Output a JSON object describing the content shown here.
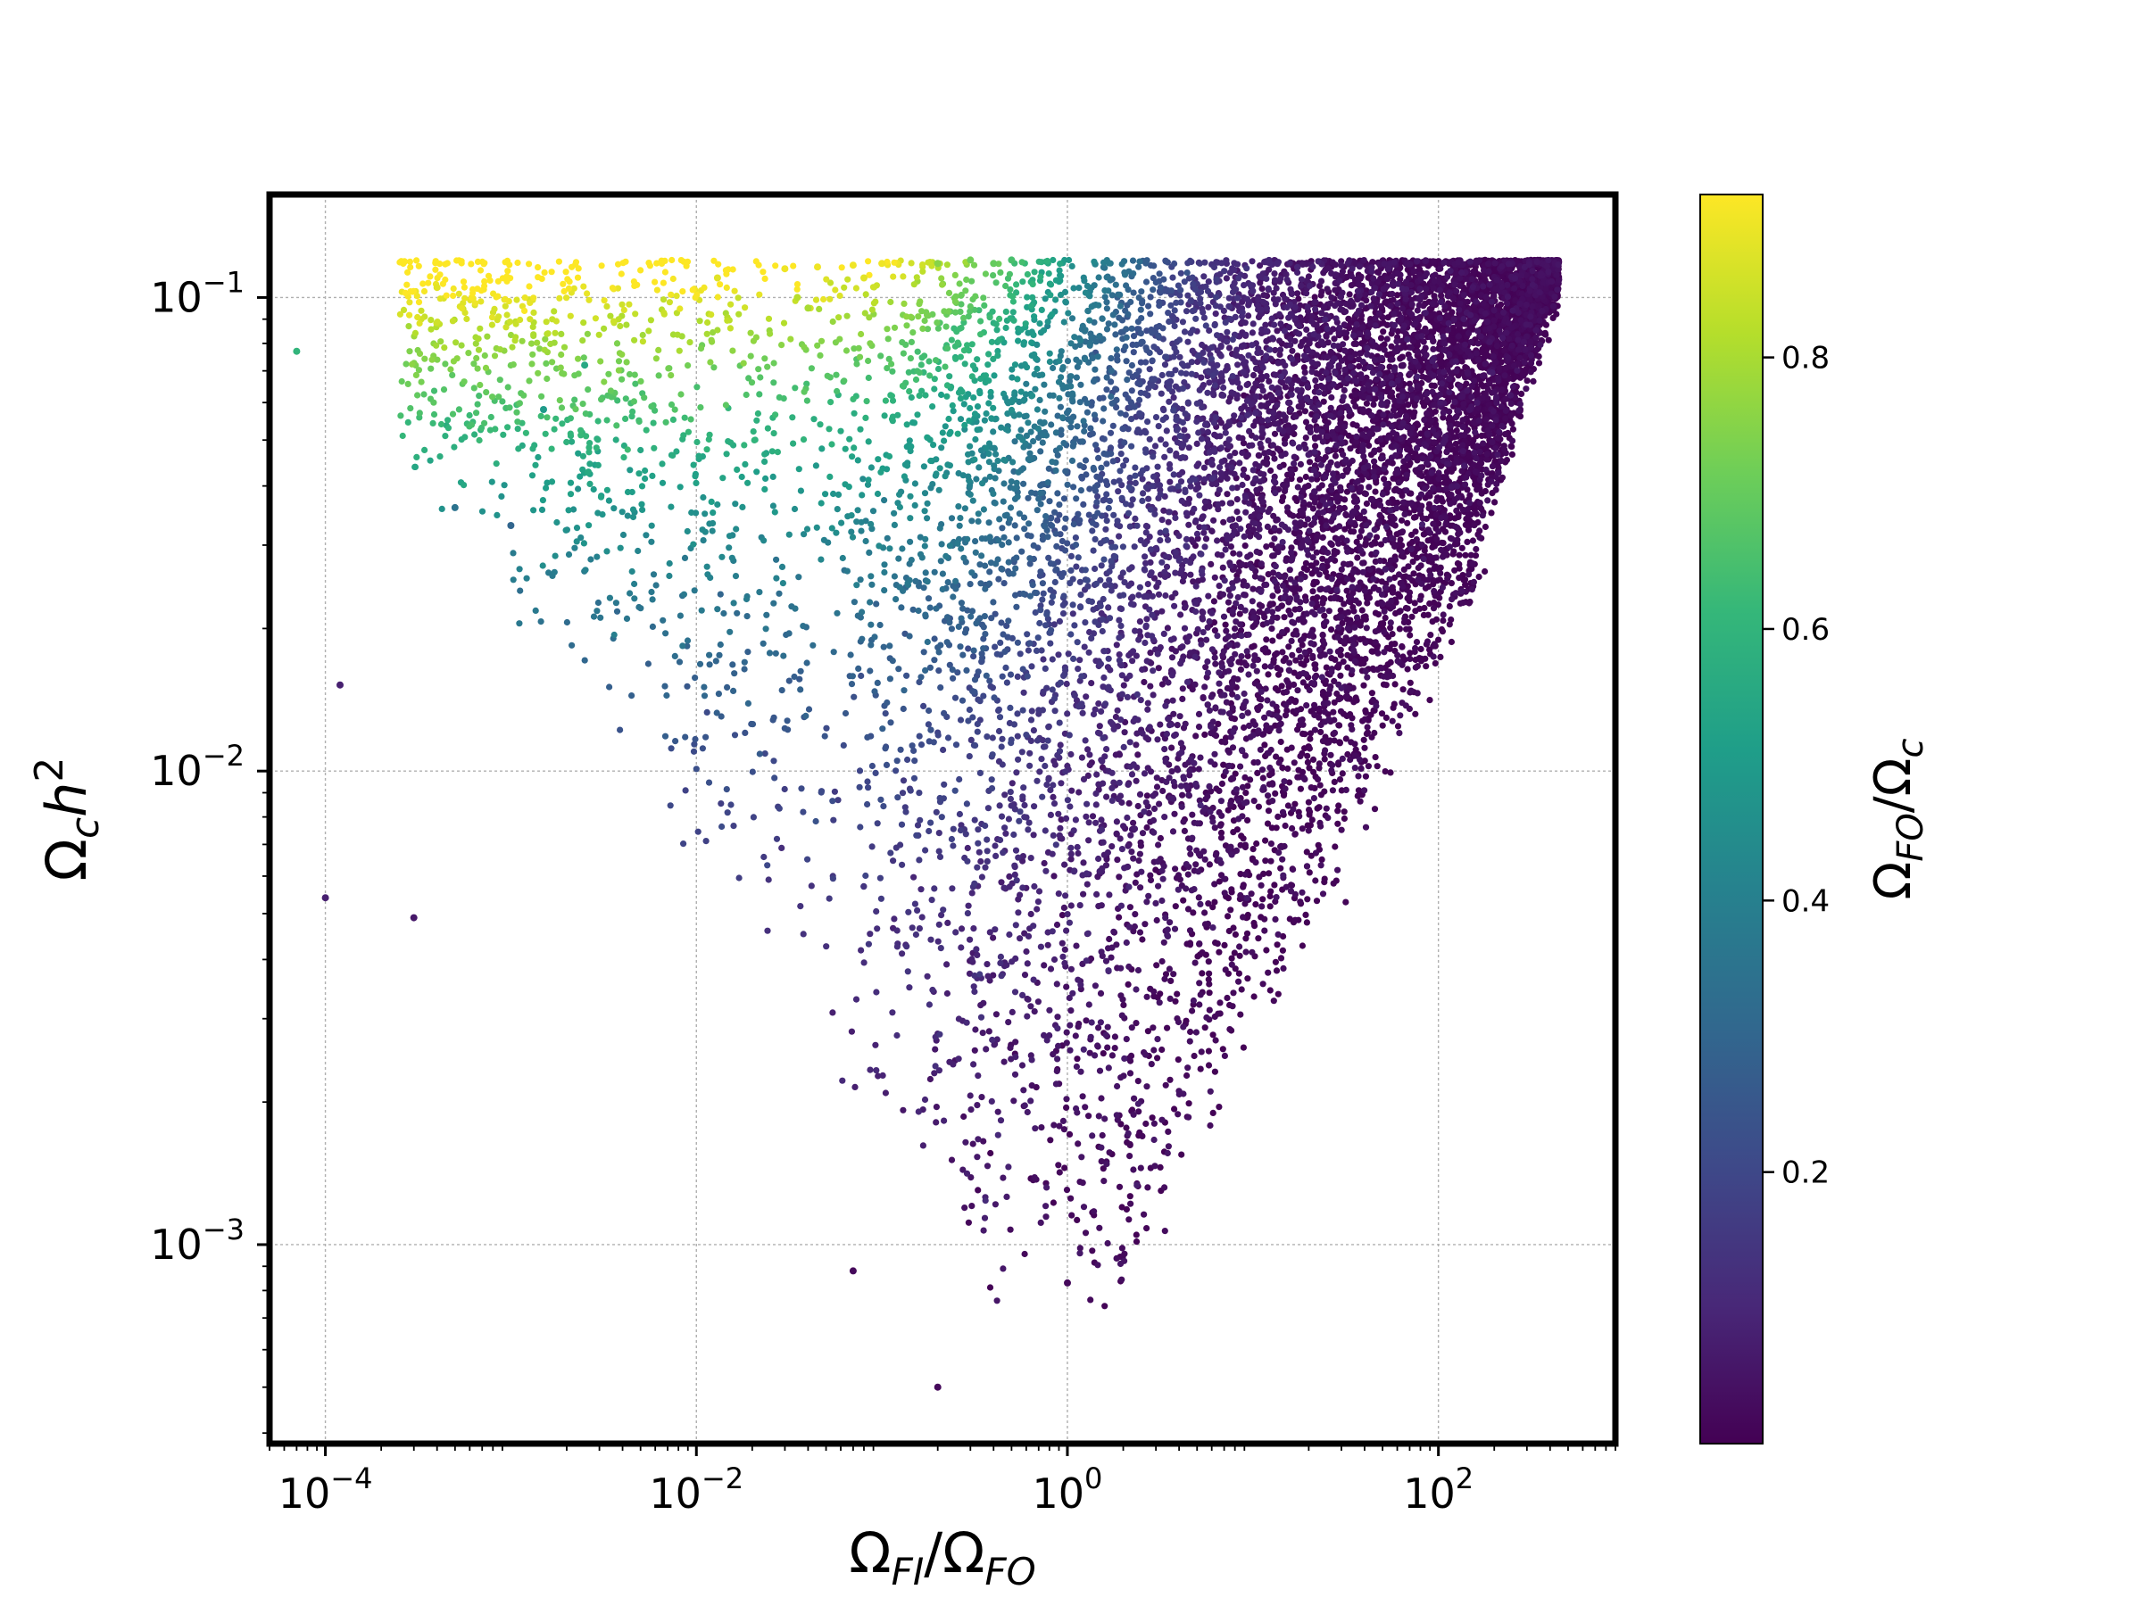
{
  "chart_data": {
    "type": "scatter",
    "title": "",
    "xlabel": {
      "main": "Ω",
      "sub1": "FI",
      "mid": "/Ω",
      "sub2": "FO"
    },
    "ylabel": {
      "main": "Ω",
      "sub": "c",
      "tail": "h",
      "sup": "2"
    },
    "x_scale": "log",
    "y_scale": "log",
    "xlim": [
      5e-05,
      900
    ],
    "ylim": [
      0.00038,
      0.165
    ],
    "x_ticks": [
      {
        "value": 0.0001,
        "base": "10",
        "exp": "−4"
      },
      {
        "value": 0.01,
        "base": "10",
        "exp": "−2"
      },
      {
        "value": 1,
        "base": "10",
        "exp": "0"
      },
      {
        "value": 100,
        "base": "10",
        "exp": "2"
      }
    ],
    "y_ticks": [
      {
        "value": 0.1,
        "base": "10",
        "exp": "−1"
      },
      {
        "value": 0.01,
        "base": "10",
        "exp": "−2"
      },
      {
        "value": 0.001,
        "base": "10",
        "exp": "−3"
      }
    ],
    "grid": true,
    "colorbar": {
      "label": {
        "main": "Ω",
        "sub1": "FO",
        "mid": "/Ω",
        "sub2": "c"
      },
      "range": [
        0.0,
        0.92
      ],
      "ticks": [
        {
          "value": 0.2,
          "label": "0.2"
        },
        {
          "value": 0.4,
          "label": "0.4"
        },
        {
          "value": 0.6,
          "label": "0.6"
        },
        {
          "value": 0.8,
          "label": "0.8"
        }
      ],
      "colormap": "viridis",
      "colormap_stops": [
        "#440154",
        "#482878",
        "#3e4989",
        "#31688e",
        "#26828e",
        "#1f9e89",
        "#35b779",
        "#6ece58",
        "#b5de2b",
        "#fde725"
      ]
    },
    "highlight_points": [
      {
        "x": 7e-05,
        "y": 0.077,
        "c": 0.6
      },
      {
        "x": 0.0004,
        "y": 0.105,
        "c": 0.88
      },
      {
        "x": 0.013,
        "y": 0.11,
        "c": 0.88
      },
      {
        "x": 0.03,
        "y": 0.115,
        "c": 0.9
      },
      {
        "x": 0.045,
        "y": 0.116,
        "c": 0.9
      },
      {
        "x": 0.07,
        "y": 0.117,
        "c": 0.9
      },
      {
        "x": 0.08,
        "y": 0.11,
        "c": 0.88
      },
      {
        "x": 0.1,
        "y": 0.118,
        "c": 0.9
      },
      {
        "x": 0.035,
        "y": 0.1,
        "c": 0.82
      },
      {
        "x": 0.04,
        "y": 0.095,
        "c": 0.8
      },
      {
        "x": 0.2,
        "y": 0.118,
        "c": 0.75
      },
      {
        "x": 0.3,
        "y": 0.12,
        "c": 0.72
      },
      {
        "x": 0.4,
        "y": 0.118,
        "c": 0.7
      },
      {
        "x": 0.5,
        "y": 0.12,
        "c": 0.65
      },
      {
        "x": 0.00012,
        "y": 0.0152,
        "c": 0.08
      },
      {
        "x": 0.0001,
        "y": 0.0054,
        "c": 0.08
      },
      {
        "x": 0.0003,
        "y": 0.0049,
        "c": 0.06
      },
      {
        "x": 0.2,
        "y": 0.0005,
        "c": 0.02
      },
      {
        "x": 1.0,
        "y": 0.00083,
        "c": 0.02
      },
      {
        "x": 0.07,
        "y": 0.00088,
        "c": 0.02
      },
      {
        "x": 0.0025,
        "y": 0.072,
        "c": 0.55
      },
      {
        "x": 0.0015,
        "y": 0.058,
        "c": 0.5
      },
      {
        "x": 0.0005,
        "y": 0.036,
        "c": 0.35
      },
      {
        "x": 0.001,
        "y": 0.033,
        "c": 0.3
      }
    ]
  }
}
